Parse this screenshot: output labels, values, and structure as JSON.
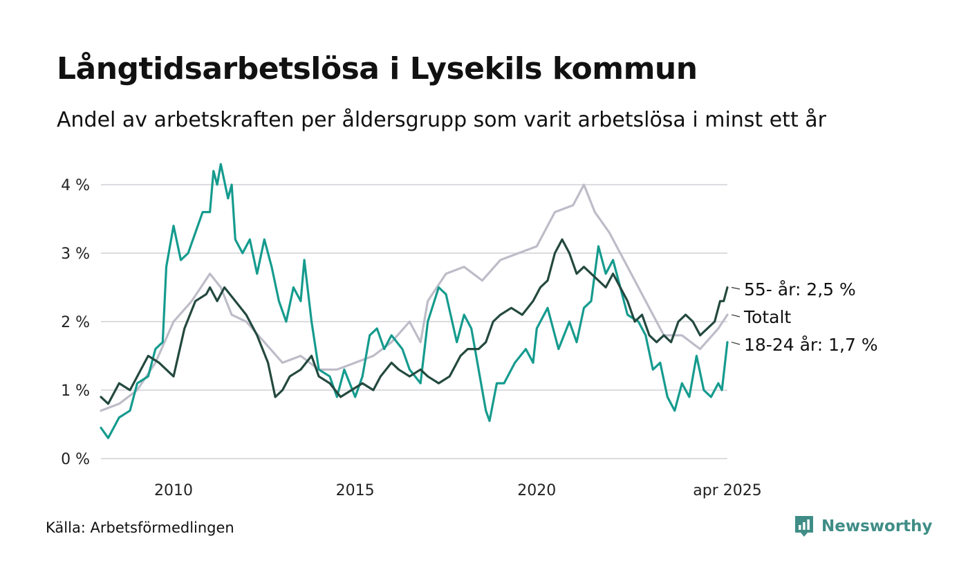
{
  "title": "Långtidsarbetslösa i Lysekils kommun",
  "subtitle": "Andel av arbetskraften per åldersgrupp som varit arbetslösa i minst ett år",
  "source": "Källa: Arbetsförmedlingen",
  "brand": {
    "name": "Newsworthy",
    "icon": "newsworthy-logo-icon"
  },
  "colors": {
    "teal": "#159b8e",
    "dark_green": "#24493f",
    "grey": "#bdbcc8",
    "grid": "#dcdce0",
    "brand": "#3f8d86"
  },
  "chart_data": {
    "type": "line",
    "title": "Långtidsarbetslösa i Lysekils kommun",
    "xlabel": "",
    "ylabel": "",
    "x_ticks": [
      "2010",
      "2015",
      "2020",
      "apr 2025"
    ],
    "y_ticks": [
      "0 %",
      "1 %",
      "2 %",
      "3 %",
      "4 %"
    ],
    "xlim": [
      2008.0,
      2025.25
    ],
    "ylim": [
      0,
      4.3
    ],
    "grid": true,
    "legend": "end-labels",
    "series": [
      {
        "name": "Totalt",
        "color": "#bdbcc8",
        "end_label": "Totalt",
        "points": [
          [
            2008.0,
            0.7
          ],
          [
            2008.5,
            0.8
          ],
          [
            2009.0,
            1.0
          ],
          [
            2009.5,
            1.4
          ],
          [
            2010.0,
            2.0
          ],
          [
            2010.5,
            2.3
          ],
          [
            2011.0,
            2.7
          ],
          [
            2011.3,
            2.5
          ],
          [
            2011.6,
            2.1
          ],
          [
            2012.0,
            2.0
          ],
          [
            2012.5,
            1.7
          ],
          [
            2013.0,
            1.4
          ],
          [
            2013.5,
            1.5
          ],
          [
            2014.0,
            1.3
          ],
          [
            2014.5,
            1.3
          ],
          [
            2015.0,
            1.4
          ],
          [
            2015.5,
            1.5
          ],
          [
            2016.0,
            1.7
          ],
          [
            2016.5,
            2.0
          ],
          [
            2016.8,
            1.7
          ],
          [
            2017.0,
            2.3
          ],
          [
            2017.5,
            2.7
          ],
          [
            2018.0,
            2.8
          ],
          [
            2018.5,
            2.6
          ],
          [
            2019.0,
            2.9
          ],
          [
            2019.5,
            3.0
          ],
          [
            2020.0,
            3.1
          ],
          [
            2020.5,
            3.6
          ],
          [
            2021.0,
            3.7
          ],
          [
            2021.3,
            4.0
          ],
          [
            2021.6,
            3.6
          ],
          [
            2022.0,
            3.3
          ],
          [
            2022.5,
            2.8
          ],
          [
            2023.0,
            2.3
          ],
          [
            2023.5,
            1.8
          ],
          [
            2024.0,
            1.8
          ],
          [
            2024.5,
            1.6
          ],
          [
            2025.0,
            1.9
          ],
          [
            2025.25,
            2.1
          ]
        ]
      },
      {
        "name": "18-24 år",
        "color": "#159b8e",
        "end_label": "18-24 år: 1,7 %",
        "points": [
          [
            2008.0,
            0.45
          ],
          [
            2008.2,
            0.3
          ],
          [
            2008.5,
            0.6
          ],
          [
            2008.8,
            0.7
          ],
          [
            2009.0,
            1.1
          ],
          [
            2009.3,
            1.2
          ],
          [
            2009.5,
            1.6
          ],
          [
            2009.7,
            1.7
          ],
          [
            2009.8,
            2.8
          ],
          [
            2010.0,
            3.4
          ],
          [
            2010.2,
            2.9
          ],
          [
            2010.4,
            3.0
          ],
          [
            2010.6,
            3.3
          ],
          [
            2010.8,
            3.6
          ],
          [
            2011.0,
            3.6
          ],
          [
            2011.1,
            4.2
          ],
          [
            2011.2,
            4.0
          ],
          [
            2011.3,
            4.3
          ],
          [
            2011.5,
            3.8
          ],
          [
            2011.6,
            4.0
          ],
          [
            2011.7,
            3.2
          ],
          [
            2011.9,
            3.0
          ],
          [
            2012.1,
            3.2
          ],
          [
            2012.3,
            2.7
          ],
          [
            2012.5,
            3.2
          ],
          [
            2012.7,
            2.8
          ],
          [
            2012.9,
            2.3
          ],
          [
            2013.1,
            2.0
          ],
          [
            2013.3,
            2.5
          ],
          [
            2013.5,
            2.3
          ],
          [
            2013.6,
            2.9
          ],
          [
            2013.8,
            2.0
          ],
          [
            2014.0,
            1.3
          ],
          [
            2014.3,
            1.2
          ],
          [
            2014.5,
            0.9
          ],
          [
            2014.7,
            1.3
          ],
          [
            2015.0,
            0.9
          ],
          [
            2015.2,
            1.2
          ],
          [
            2015.4,
            1.8
          ],
          [
            2015.6,
            1.9
          ],
          [
            2015.8,
            1.6
          ],
          [
            2016.0,
            1.8
          ],
          [
            2016.3,
            1.6
          ],
          [
            2016.5,
            1.3
          ],
          [
            2016.8,
            1.1
          ],
          [
            2017.0,
            2.0
          ],
          [
            2017.3,
            2.5
          ],
          [
            2017.5,
            2.4
          ],
          [
            2017.8,
            1.7
          ],
          [
            2018.0,
            2.1
          ],
          [
            2018.2,
            1.9
          ],
          [
            2018.4,
            1.3
          ],
          [
            2018.6,
            0.7
          ],
          [
            2018.7,
            0.55
          ],
          [
            2018.9,
            1.1
          ],
          [
            2019.1,
            1.1
          ],
          [
            2019.4,
            1.4
          ],
          [
            2019.7,
            1.6
          ],
          [
            2019.9,
            1.4
          ],
          [
            2020.0,
            1.9
          ],
          [
            2020.3,
            2.2
          ],
          [
            2020.6,
            1.6
          ],
          [
            2020.9,
            2.0
          ],
          [
            2021.1,
            1.7
          ],
          [
            2021.3,
            2.2
          ],
          [
            2021.5,
            2.3
          ],
          [
            2021.7,
            3.1
          ],
          [
            2021.9,
            2.7
          ],
          [
            2022.1,
            2.9
          ],
          [
            2022.3,
            2.5
          ],
          [
            2022.5,
            2.1
          ],
          [
            2022.8,
            2.0
          ],
          [
            2023.0,
            1.8
          ],
          [
            2023.2,
            1.3
          ],
          [
            2023.4,
            1.4
          ],
          [
            2023.6,
            0.9
          ],
          [
            2023.8,
            0.7
          ],
          [
            2024.0,
            1.1
          ],
          [
            2024.2,
            0.9
          ],
          [
            2024.4,
            1.5
          ],
          [
            2024.6,
            1.0
          ],
          [
            2024.8,
            0.9
          ],
          [
            2025.0,
            1.1
          ],
          [
            2025.1,
            1.0
          ],
          [
            2025.25,
            1.7
          ]
        ]
      },
      {
        "name": "55- år",
        "color": "#24493f",
        "end_label": "55- år: 2,5 %",
        "points": [
          [
            2008.0,
            0.9
          ],
          [
            2008.2,
            0.8
          ],
          [
            2008.5,
            1.1
          ],
          [
            2008.8,
            1.0
          ],
          [
            2009.0,
            1.2
          ],
          [
            2009.3,
            1.5
          ],
          [
            2009.6,
            1.4
          ],
          [
            2009.8,
            1.3
          ],
          [
            2010.0,
            1.2
          ],
          [
            2010.3,
            1.9
          ],
          [
            2010.6,
            2.3
          ],
          [
            2010.9,
            2.4
          ],
          [
            2011.0,
            2.5
          ],
          [
            2011.2,
            2.3
          ],
          [
            2011.4,
            2.5
          ],
          [
            2011.7,
            2.3
          ],
          [
            2012.0,
            2.1
          ],
          [
            2012.3,
            1.8
          ],
          [
            2012.6,
            1.4
          ],
          [
            2012.8,
            0.9
          ],
          [
            2013.0,
            1.0
          ],
          [
            2013.2,
            1.2
          ],
          [
            2013.5,
            1.3
          ],
          [
            2013.8,
            1.5
          ],
          [
            2014.0,
            1.2
          ],
          [
            2014.3,
            1.1
          ],
          [
            2014.6,
            0.9
          ],
          [
            2014.9,
            1.0
          ],
          [
            2015.2,
            1.1
          ],
          [
            2015.5,
            1.0
          ],
          [
            2015.7,
            1.2
          ],
          [
            2016.0,
            1.4
          ],
          [
            2016.2,
            1.3
          ],
          [
            2016.5,
            1.2
          ],
          [
            2016.8,
            1.3
          ],
          [
            2017.0,
            1.2
          ],
          [
            2017.3,
            1.1
          ],
          [
            2017.6,
            1.2
          ],
          [
            2017.9,
            1.5
          ],
          [
            2018.1,
            1.6
          ],
          [
            2018.4,
            1.6
          ],
          [
            2018.6,
            1.7
          ],
          [
            2018.8,
            2.0
          ],
          [
            2019.0,
            2.1
          ],
          [
            2019.3,
            2.2
          ],
          [
            2019.6,
            2.1
          ],
          [
            2019.9,
            2.3
          ],
          [
            2020.1,
            2.5
          ],
          [
            2020.3,
            2.6
          ],
          [
            2020.5,
            3.0
          ],
          [
            2020.7,
            3.2
          ],
          [
            2020.9,
            3.0
          ],
          [
            2021.1,
            2.7
          ],
          [
            2021.3,
            2.8
          ],
          [
            2021.5,
            2.7
          ],
          [
            2021.7,
            2.6
          ],
          [
            2021.9,
            2.5
          ],
          [
            2022.1,
            2.7
          ],
          [
            2022.3,
            2.5
          ],
          [
            2022.5,
            2.3
          ],
          [
            2022.7,
            2.0
          ],
          [
            2022.9,
            2.1
          ],
          [
            2023.1,
            1.8
          ],
          [
            2023.3,
            1.7
          ],
          [
            2023.5,
            1.8
          ],
          [
            2023.7,
            1.7
          ],
          [
            2023.9,
            2.0
          ],
          [
            2024.1,
            2.1
          ],
          [
            2024.3,
            2.0
          ],
          [
            2024.5,
            1.8
          ],
          [
            2024.7,
            1.9
          ],
          [
            2024.9,
            2.0
          ],
          [
            2025.05,
            2.3
          ],
          [
            2025.15,
            2.3
          ],
          [
            2025.25,
            2.5
          ]
        ]
      }
    ]
  }
}
